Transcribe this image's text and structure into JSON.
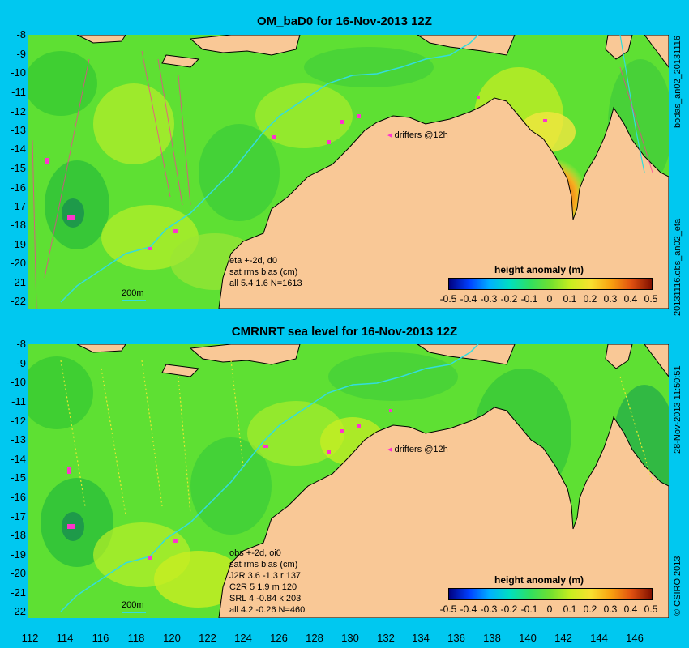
{
  "panels": [
    {
      "title": "OM_baD0 for 16-Nov-2013 12Z",
      "drifters_label": "drifters @12h",
      "stats_lines": [
        "eta +-2d, d0",
        "sat rms bias (cm)",
        "all 5.4 1.6 N=1613"
      ],
      "contour_label": "200m",
      "colorbar_title": "height anomaly (m)",
      "side_label_top": "bodas_an02_20131116",
      "side_label_bottom": "20131116.obs_an02_eta"
    },
    {
      "title": "CMRNRT sea level  for 16-Nov-2013 12Z",
      "drifters_label": "drifters @12h",
      "stats_lines": [
        "obs +-2d, oi0",
        "sat rms bias (cm)",
        "J2R   3.6 -1.3 r 137",
        "C2R   5 1.9 m 120",
        "SRL   4 -0.84 k 203",
        "all   4.2 -0.26 N=460"
      ],
      "contour_label": "200m",
      "colorbar_title": "height anomaly (m)",
      "side_label_top": "28-Nov-2013 11:50:51",
      "side_label_bottom": "© CSIRO 2013"
    }
  ],
  "y_ticks": [
    "-8",
    "-9",
    "-10",
    "-11",
    "-12",
    "-13",
    "-14",
    "-15",
    "-16",
    "-17",
    "-18",
    "-19",
    "-20",
    "-21",
    "-22"
  ],
  "x_ticks": [
    "112",
    "114",
    "116",
    "118",
    "120",
    "122",
    "124",
    "126",
    "128",
    "130",
    "132",
    "134",
    "136",
    "138",
    "140",
    "142",
    "144",
    "146"
  ],
  "colorbar_ticks": [
    "-0.5",
    "-0.4",
    "-0.3",
    "-0.2",
    "-0.1",
    "0",
    "0.1",
    "0.2",
    "0.3",
    "0.4",
    "0.5"
  ],
  "colors": {
    "background": "#00c8f0",
    "land": "#f9c896",
    "ocean_base": "#5ee033",
    "drifters": "#ff33cc",
    "contour": "#33dddd"
  }
}
